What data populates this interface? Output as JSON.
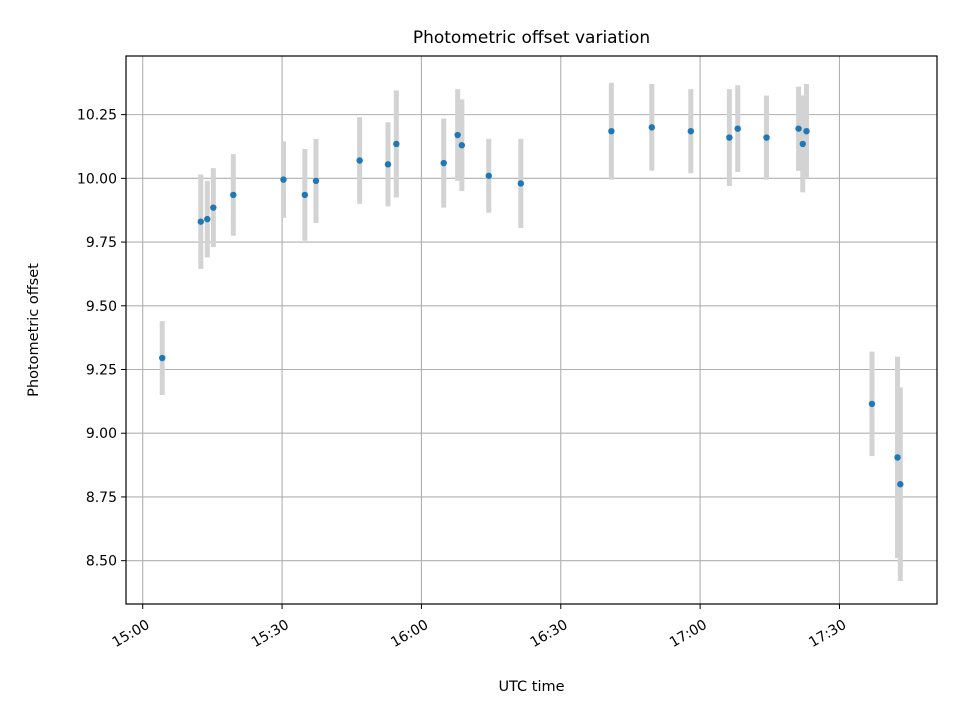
{
  "chart_data": {
    "type": "scatter",
    "title": "Photometric offset variation",
    "xlabel": "UTC time",
    "ylabel": "Photometric offset",
    "x_unit": "minutes after 15:00 UTC",
    "xlim": [
      -3.6,
      171
    ],
    "ylim": [
      8.33,
      10.48
    ],
    "x_ticks": [
      {
        "value": 0,
        "label": "15:00"
      },
      {
        "value": 30,
        "label": "15:30"
      },
      {
        "value": 60,
        "label": "16:00"
      },
      {
        "value": 90,
        "label": "16:30"
      },
      {
        "value": 120,
        "label": "17:00"
      },
      {
        "value": 150,
        "label": "17:30"
      }
    ],
    "y_ticks": [
      {
        "value": 8.5,
        "label": "8.50"
      },
      {
        "value": 8.75,
        "label": "8.75"
      },
      {
        "value": 9.0,
        "label": "9.00"
      },
      {
        "value": 9.25,
        "label": "9.25"
      },
      {
        "value": 9.5,
        "label": "9.50"
      },
      {
        "value": 9.75,
        "label": "9.75"
      },
      {
        "value": 10.0,
        "label": "10.00"
      },
      {
        "value": 10.25,
        "label": "10.25"
      }
    ],
    "grid": true,
    "marker_color": "#1f77b4",
    "errorbar_color": "#d3d3d3",
    "points": [
      {
        "x": 4.2,
        "y": 9.295,
        "yerr": 0.145
      },
      {
        "x": 12.5,
        "y": 9.83,
        "yerr": 0.185
      },
      {
        "x": 13.9,
        "y": 9.84,
        "yerr": 0.15
      },
      {
        "x": 15.2,
        "y": 9.885,
        "yerr": 0.155
      },
      {
        "x": 19.5,
        "y": 9.935,
        "yerr": 0.16
      },
      {
        "x": 30.3,
        "y": 9.995,
        "yerr": 0.15
      },
      {
        "x": 34.9,
        "y": 9.935,
        "yerr": 0.18
      },
      {
        "x": 37.3,
        "y": 9.99,
        "yerr": 0.165
      },
      {
        "x": 46.7,
        "y": 10.07,
        "yerr": 0.17
      },
      {
        "x": 52.8,
        "y": 10.055,
        "yerr": 0.165
      },
      {
        "x": 54.6,
        "y": 10.135,
        "yerr": 0.21
      },
      {
        "x": 64.8,
        "y": 10.06,
        "yerr": 0.175
      },
      {
        "x": 67.8,
        "y": 10.17,
        "yerr": 0.18
      },
      {
        "x": 68.7,
        "y": 10.13,
        "yerr": 0.18
      },
      {
        "x": 74.5,
        "y": 10.01,
        "yerr": 0.145
      },
      {
        "x": 81.4,
        "y": 9.98,
        "yerr": 0.175
      },
      {
        "x": 100.9,
        "y": 10.185,
        "yerr": 0.19
      },
      {
        "x": 109.6,
        "y": 10.2,
        "yerr": 0.17
      },
      {
        "x": 118.0,
        "y": 10.185,
        "yerr": 0.165
      },
      {
        "x": 126.3,
        "y": 10.16,
        "yerr": 0.19
      },
      {
        "x": 128.1,
        "y": 10.195,
        "yerr": 0.17
      },
      {
        "x": 134.3,
        "y": 10.16,
        "yerr": 0.165
      },
      {
        "x": 141.2,
        "y": 10.195,
        "yerr": 0.165
      },
      {
        "x": 142.1,
        "y": 10.135,
        "yerr": 0.19
      },
      {
        "x": 142.9,
        "y": 10.185,
        "yerr": 0.185
      },
      {
        "x": 157.0,
        "y": 9.115,
        "yerr": 0.205
      },
      {
        "x": 162.5,
        "y": 8.905,
        "yerr": 0.395
      },
      {
        "x": 163.1,
        "y": 8.8,
        "yerr": 0.38
      }
    ]
  }
}
